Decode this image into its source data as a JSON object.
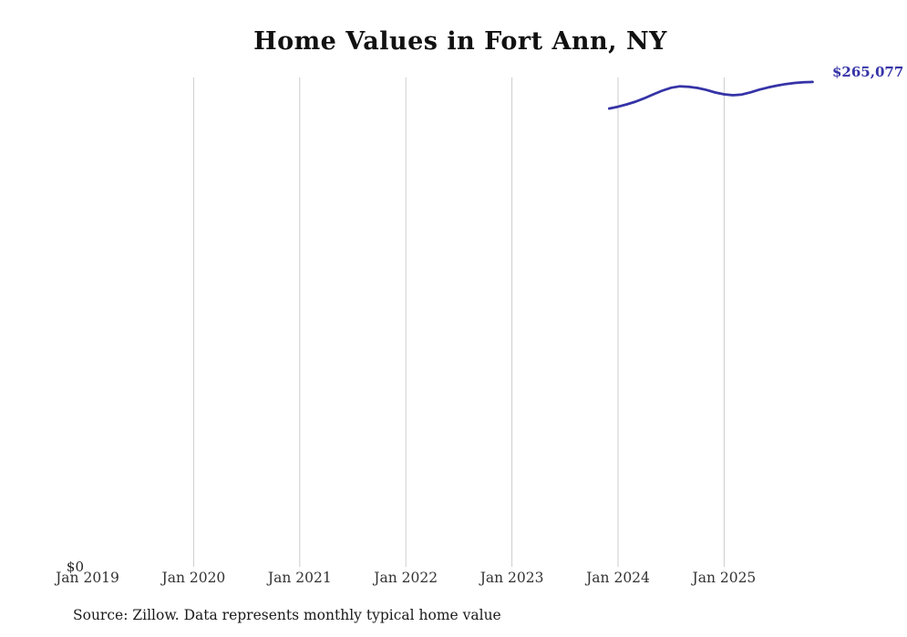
{
  "title": "Home Values in Fort Ann, NY",
  "source_note": "Source: Zillow. Data represents monthly typical home value",
  "y_axis": {
    "zero_label": "$0"
  },
  "colors": {
    "line": "#3533a6",
    "gridline": "#cccccc",
    "title": "#111111",
    "tick": "#333333"
  },
  "chart_data": {
    "type": "line",
    "title": "Home Values in Fort Ann, NY",
    "xlabel": "",
    "ylabel": "",
    "ylim": [
      0,
      270000
    ],
    "grid": "vertical-gridlines-at-january",
    "legend": "none",
    "end_value_label": "$265,077",
    "x_tick_labels": [
      "Jan 2019",
      "Jan 2020",
      "Jan 2021",
      "Jan 2022",
      "Jan 2023",
      "Jan 2024",
      "Jan 2025"
    ],
    "gridline_ticks": [
      "Jan 2020",
      "Jan 2021",
      "Jan 2022",
      "Jan 2023",
      "Jan 2024",
      "Jan 2025"
    ],
    "start_month_offset_from_jan2024": -1,
    "series": [
      {
        "name": "Typical home value",
        "x": [
          "Dec 2023",
          "Jan 2024",
          "Feb 2024",
          "Mar 2024",
          "Apr 2024",
          "May 2024",
          "Jun 2024",
          "Jul 2024",
          "Aug 2024",
          "Sep 2024",
          "Oct 2024",
          "Nov 2024",
          "Dec 2024",
          "Jan 2025",
          "Feb 2025",
          "Mar 2025",
          "Apr 2025",
          "May 2025",
          "Jun 2025",
          "Jul 2025",
          "Aug 2025",
          "Sep 2025",
          "Oct 2025",
          "Nov 2025"
        ],
        "values": [
          250500,
          251500,
          252800,
          254300,
          256200,
          258300,
          260300,
          261900,
          262700,
          262400,
          261800,
          260700,
          259300,
          258300,
          257800,
          258200,
          259400,
          260900,
          262100,
          263100,
          263900,
          264500,
          264900,
          265077
        ]
      }
    ]
  }
}
